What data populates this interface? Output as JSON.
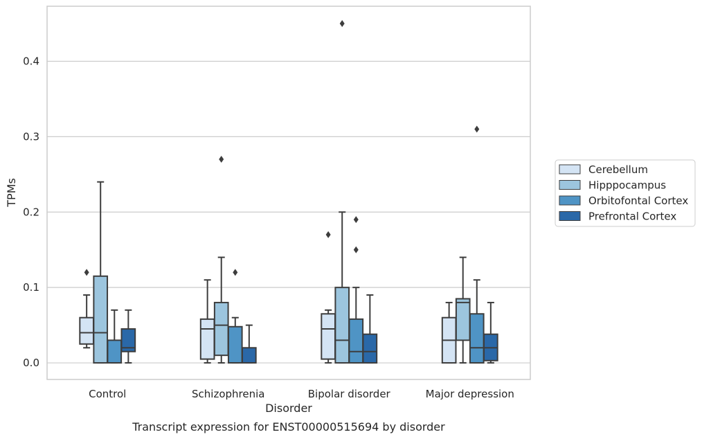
{
  "chart_data": {
    "type": "box",
    "caption": "Transcript expression for ENST00000515694 by disorder",
    "xlabel": "Disorder",
    "ylabel": "TPMs",
    "ylim": [
      -0.022,
      0.473
    ],
    "yticks": [
      0.0,
      0.1,
      0.2,
      0.3,
      0.4
    ],
    "ytick_labels": [
      "0.0",
      "0.1",
      "0.2",
      "0.3",
      "0.4"
    ],
    "grid": "horizontal",
    "legend_position": "right",
    "categories": [
      "Control",
      "Schizophrenia",
      "Bipolar disorder",
      "Major depression"
    ],
    "series": [
      {
        "name": "Cerebellum",
        "color": "#d4e4f4",
        "boxes": [
          {
            "whisker_low": 0.02,
            "q1": 0.025,
            "median": 0.04,
            "q3": 0.06,
            "whisker_high": 0.09,
            "outliers": [
              0.12
            ]
          },
          {
            "whisker_low": 0.0,
            "q1": 0.005,
            "median": 0.045,
            "q3": 0.058,
            "whisker_high": 0.11,
            "outliers": []
          },
          {
            "whisker_low": 0.0,
            "q1": 0.005,
            "median": 0.045,
            "q3": 0.065,
            "whisker_high": 0.07,
            "outliers": [
              0.17
            ]
          },
          {
            "whisker_low": 0.0,
            "q1": 0.0,
            "median": 0.03,
            "q3": 0.06,
            "whisker_high": 0.08,
            "outliers": []
          }
        ]
      },
      {
        "name": "Hipppocampus",
        "color": "#9cc5de",
        "boxes": [
          {
            "whisker_low": 0.0,
            "q1": 0.0,
            "median": 0.04,
            "q3": 0.115,
            "whisker_high": 0.24,
            "outliers": []
          },
          {
            "whisker_low": 0.0,
            "q1": 0.01,
            "median": 0.05,
            "q3": 0.08,
            "whisker_high": 0.14,
            "outliers": [
              0.27
            ]
          },
          {
            "whisker_low": 0.0,
            "q1": 0.0,
            "median": 0.03,
            "q3": 0.1,
            "whisker_high": 0.2,
            "outliers": [
              0.45
            ]
          },
          {
            "whisker_low": 0.0,
            "q1": 0.03,
            "median": 0.08,
            "q3": 0.085,
            "whisker_high": 0.14,
            "outliers": []
          }
        ]
      },
      {
        "name": "Orbitofontal Cortex",
        "color": "#4f94c5",
        "boxes": [
          {
            "whisker_low": 0.0,
            "q1": 0.0,
            "median": 0.0,
            "q3": 0.03,
            "whisker_high": 0.07,
            "outliers": []
          },
          {
            "whisker_low": 0.0,
            "q1": 0.0,
            "median": 0.0,
            "q3": 0.048,
            "whisker_high": 0.06,
            "outliers": [
              0.12
            ]
          },
          {
            "whisker_low": 0.0,
            "q1": 0.0,
            "median": 0.015,
            "q3": 0.058,
            "whisker_high": 0.1,
            "outliers": [
              0.15,
              0.19
            ]
          },
          {
            "whisker_low": 0.0,
            "q1": 0.0,
            "median": 0.02,
            "q3": 0.065,
            "whisker_high": 0.11,
            "outliers": [
              0.31
            ]
          }
        ]
      },
      {
        "name": "Prefrontal Cortex",
        "color": "#2a68a8",
        "boxes": [
          {
            "whisker_low": 0.0,
            "q1": 0.015,
            "median": 0.02,
            "q3": 0.045,
            "whisker_high": 0.07,
            "outliers": []
          },
          {
            "whisker_low": 0.0,
            "q1": 0.0,
            "median": 0.0,
            "q3": 0.02,
            "whisker_high": 0.05,
            "outliers": []
          },
          {
            "whisker_low": 0.0,
            "q1": 0.0,
            "median": 0.015,
            "q3": 0.038,
            "whisker_high": 0.09,
            "outliers": []
          },
          {
            "whisker_low": 0.0,
            "q1": 0.003,
            "median": 0.02,
            "q3": 0.038,
            "whisker_high": 0.08,
            "outliers": []
          }
        ]
      }
    ]
  }
}
